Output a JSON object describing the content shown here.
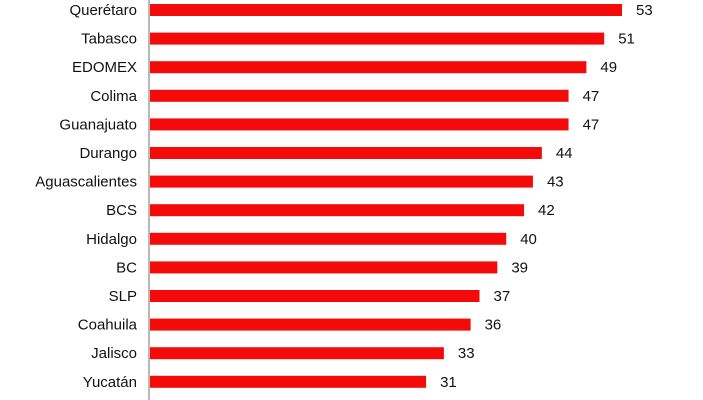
{
  "chart_data": {
    "type": "bar",
    "orientation": "horizontal",
    "categories": [
      "Querétaro",
      "Tabasco",
      "EDOMEX",
      "Colima",
      "Guanajuato",
      "Durango",
      "Aguascalientes",
      "BCS",
      "Hidalgo",
      "BC",
      "SLP",
      "Coahuila",
      "Jalisco",
      "Yucatán"
    ],
    "values": [
      53,
      51,
      49,
      47,
      47,
      44,
      43,
      42,
      40,
      39,
      37,
      36,
      33,
      31
    ],
    "value_labels": [
      "53",
      "51",
      "49",
      "47",
      "47",
      "44",
      "43",
      "42",
      "40",
      "39",
      "37",
      "36",
      "33",
      "31"
    ],
    "title": "",
    "xlabel": "",
    "ylabel": "",
    "xlim": [
      0,
      53
    ],
    "grid": false,
    "legend": "none",
    "bar_color": "#f50a0a",
    "axis_color": "#888888"
  }
}
